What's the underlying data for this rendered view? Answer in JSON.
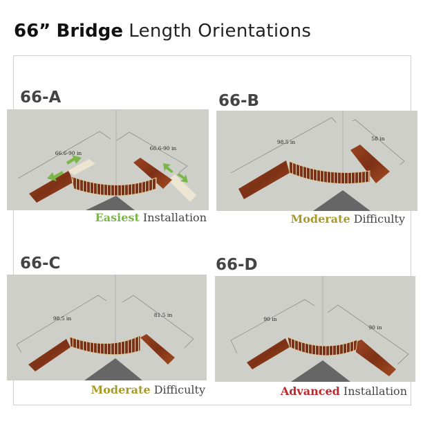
{
  "title": {
    "size": "66”",
    "product": "Bridge",
    "rest": "Length Orientations"
  },
  "colors": {
    "easy": "#7ab648",
    "moderate": "#a89a2a",
    "advanced": "#c0272d",
    "wood": "#8b3a1a",
    "background": "#cfcfca"
  },
  "panels": [
    {
      "label": "66-A",
      "dim_left": "66.6-90 in",
      "dim_right": "66.6-90 in",
      "caption_em": "Easiest",
      "caption_rest": " Installation"
    },
    {
      "label": "66-B",
      "dim_left": "98.5 in",
      "dim_right": "58 in",
      "caption_em": "Moderate",
      "caption_rest": " Difficulty"
    },
    {
      "label": "66-C",
      "dim_left": "98.5 in",
      "dim_right": "81.5 in",
      "caption_em": "Moderate",
      "caption_rest": " Difficulty"
    },
    {
      "label": "66-D",
      "dim_left": "90 in",
      "dim_right": "90 in",
      "caption_em": "Advanced",
      "caption_rest": " Installation"
    }
  ]
}
